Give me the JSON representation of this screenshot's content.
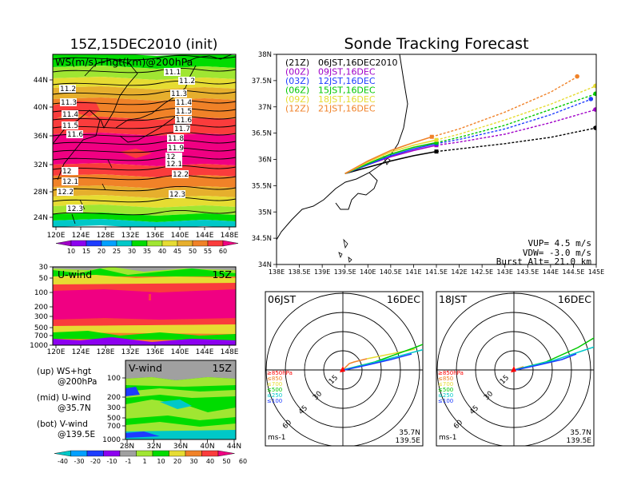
{
  "main_title": "15Z,15DEC2010 (init)",
  "right_title": "Sonde Tracking Forecast",
  "colors": {
    "ws_scale": [
      "#a000c8",
      "#8c00f0",
      "#1e3cff",
      "#00a0ff",
      "#00c8c8",
      "#00dc00",
      "#a0e632",
      "#e6dc32",
      "#e6af2d",
      "#f08228",
      "#fa3c3c",
      "#f00082"
    ],
    "v_scale": [
      "#00c8c8",
      "#00a0ff",
      "#1e3cff",
      "#8c00f0",
      "#a0a0a0",
      "#a0e632",
      "#00dc00",
      "#e6dc32",
      "#f08228",
      "#fa3c3c",
      "#f00082"
    ],
    "track_21z": "#000000",
    "track_00z": "#a000c8",
    "track_03z": "#1e3cff",
    "track_06z": "#00c800",
    "track_09z": "#e6dc32",
    "track_12z": "#f08228"
  },
  "ws_map": {
    "label": "WS(m/s)+hgt(km)@200hPa",
    "lat_ticks": [
      "24N",
      "28N",
      "32N",
      "36N",
      "40N",
      "44N"
    ],
    "lon_ticks": [
      "120E",
      "124E",
      "128E",
      "132E",
      "136E",
      "140E",
      "144E",
      "148E"
    ],
    "contour_labels": [
      "11.1",
      "11.2",
      "11.2",
      "11.3",
      "11.3",
      "11.4",
      "11.4",
      "11.5",
      "11.5",
      "11.6",
      "11.6",
      "11.7",
      "11.8",
      "11.9",
      "12",
      "12",
      "12.1",
      "12.1",
      "12.2",
      "12.2",
      "12.3",
      "12.3"
    ],
    "colorbar_labels": [
      "10",
      "15",
      "20",
      "25",
      "30",
      "35",
      "40",
      "45",
      "50",
      "55",
      "60"
    ]
  },
  "u_panel": {
    "label": "U-wind",
    "time": "15Z",
    "y_ticks": [
      "30",
      "50",
      "100",
      "200",
      "300",
      "500",
      "700",
      "1000"
    ],
    "x_ticks": [
      "120E",
      "124E",
      "128E",
      "132E",
      "136E",
      "140E",
      "144E",
      "148E"
    ]
  },
  "v_panel": {
    "label": "V-wind",
    "time": "15Z",
    "y_ticks": [
      "100",
      "200",
      "300",
      "500",
      "700",
      "1000"
    ],
    "x_ticks": [
      "28N",
      "32N",
      "36N",
      "40N",
      "44N"
    ],
    "colorbar_labels": [
      "-40",
      "-30",
      "-20",
      "-10",
      "-1",
      "1",
      "10",
      "20",
      "30",
      "40",
      "50",
      "60"
    ]
  },
  "legend_text": {
    "up": [
      "(up) WS+hgt",
      "@200hPa"
    ],
    "mid": [
      "(mid) U-wind",
      "@35.7N"
    ],
    "bot": [
      "(bot) V-wind",
      "@139.5E"
    ]
  },
  "track": {
    "lat_ticks": [
      "34N",
      "34.5N",
      "35N",
      "35.5N",
      "36N",
      "36.5N",
      "37N",
      "37.5N",
      "38N"
    ],
    "lon_ticks": [
      "138E",
      "138.5E",
      "139E",
      "139.5E",
      "140E",
      "140.5E",
      "141E",
      "141.5E",
      "142E",
      "142.5E",
      "143E",
      "143.5E",
      "144E",
      "144.5E",
      "145E"
    ],
    "legend": [
      {
        "code": "(21Z)",
        "time": "06JST,16DEC2010"
      },
      {
        "code": "(00Z)",
        "time": "09JST,16DEC"
      },
      {
        "code": "(03Z)",
        "time": "12JST,16DEC"
      },
      {
        "code": "(06Z)",
        "time": "15JST,16DEC"
      },
      {
        "code": "(09Z)",
        "time": "18JST,16DEC"
      },
      {
        "code": "(12Z)",
        "time": "21JST,16DEC"
      }
    ],
    "vup": "VUP= 4.5 m/s",
    "vdw": "VDW= -3.0 m/s",
    "burst": "Burst Alt= 21.0 km"
  },
  "hodo_left": {
    "time_label": "06JST",
    "date_label": "16DEC",
    "ring_labels": [
      "15",
      "30",
      "45",
      "60"
    ],
    "levels": [
      "≥850hPa",
      "≤850",
      "≤700",
      "≤500",
      "≤250",
      "≤100"
    ],
    "units": "ms-1",
    "lat": "35.7N",
    "lon": "139.5E"
  },
  "hodo_right": {
    "time_label": "18JST",
    "date_label": "16DEC",
    "ring_labels": [
      "15",
      "30",
      "45",
      "60"
    ],
    "levels": [
      "≥850hPa",
      "≤850",
      "≤700",
      "≤500",
      "≤250",
      "≤100"
    ],
    "units": "ms-1",
    "lat": "35.7N",
    "lon": "139.5E"
  },
  "chart_data": {
    "type": "line",
    "title": "Sonde Tracking Forecast",
    "xlim": [
      138,
      145
    ],
    "ylim": [
      34,
      38
    ],
    "series": [
      {
        "name": "(21Z) 06JST,16DEC2010",
        "x": [
          139.5,
          140.0,
          140.5,
          141.0,
          141.5,
          142.0,
          143.0,
          144.0,
          145.0
        ],
        "y": [
          35.73,
          35.85,
          35.97,
          36.07,
          36.15,
          36.2,
          36.3,
          36.42,
          36.6
        ]
      },
      {
        "name": "(00Z) 09JST,16DEC",
        "x": [
          139.5,
          140.0,
          140.5,
          141.0,
          141.5,
          142.0,
          143.0,
          144.0,
          145.0
        ],
        "y": [
          35.73,
          35.9,
          36.05,
          36.17,
          36.27,
          36.33,
          36.48,
          36.7,
          36.95
        ]
      },
      {
        "name": "(03Z) 12JST,16DEC",
        "x": [
          139.5,
          140.0,
          140.5,
          141.0,
          141.5,
          142.0,
          143.0,
          144.0,
          144.9
        ],
        "y": [
          35.73,
          35.9,
          36.07,
          36.2,
          36.3,
          36.38,
          36.58,
          36.85,
          37.15
        ]
      },
      {
        "name": "(06Z) 15JST,16DEC",
        "x": [
          139.5,
          140.0,
          140.5,
          141.0,
          141.5,
          142.0,
          143.0,
          144.0,
          145.0
        ],
        "y": [
          35.73,
          35.92,
          36.1,
          36.23,
          36.32,
          36.42,
          36.65,
          36.95,
          37.25
        ]
      },
      {
        "name": "(09Z) 18JST,16DEC",
        "x": [
          139.5,
          140.0,
          140.5,
          141.0,
          141.5,
          142.0,
          143.0,
          144.0,
          145.0
        ],
        "y": [
          35.73,
          35.95,
          36.14,
          36.27,
          36.37,
          36.48,
          36.75,
          37.05,
          37.4
        ]
      },
      {
        "name": "(12Z) 21JST,16DEC",
        "x": [
          139.5,
          140.0,
          140.5,
          141.0,
          141.4,
          142.0,
          143.0,
          144.0,
          144.6
        ],
        "y": [
          35.73,
          35.97,
          36.17,
          36.32,
          36.43,
          36.58,
          36.9,
          37.28,
          37.58
        ]
      }
    ]
  }
}
